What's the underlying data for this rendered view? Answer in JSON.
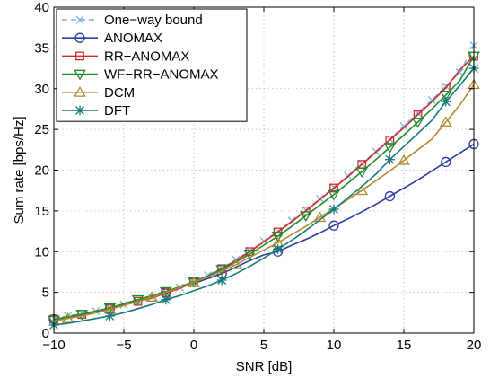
{
  "chart_data": {
    "type": "line",
    "title": "",
    "xlabel": "SNR [dB]",
    "ylabel": "Sum rate [bps/Hz]",
    "xlim": [
      -10,
      20
    ],
    "ylim": [
      0,
      40
    ],
    "xticks": [
      -10,
      -5,
      0,
      5,
      10,
      15,
      20
    ],
    "yticks": [
      0,
      5,
      10,
      15,
      20,
      25,
      30,
      35,
      40
    ],
    "xtick_labels": [
      "−10",
      "−5",
      "0",
      "5",
      "10",
      "15",
      "20"
    ],
    "ytick_labels": [
      "0",
      "5",
      "10",
      "15",
      "20",
      "25",
      "30",
      "35",
      "40"
    ],
    "grid": true,
    "legend": "top-left",
    "series": [
      {
        "name": "One−way bound",
        "color": "#7ab3dc",
        "line": "dashed",
        "marker": "x",
        "x": [
          -10,
          -9,
          -8,
          -7,
          -6,
          -5,
          -4,
          -3,
          -2,
          -1,
          0,
          1,
          2,
          3,
          4,
          5,
          6,
          7,
          8,
          9,
          10,
          11,
          12,
          13,
          14,
          15,
          16,
          17,
          18,
          19,
          20
        ],
        "y": [
          1.8,
          2.1,
          2.4,
          2.7,
          3.1,
          3.5,
          3.9,
          4.4,
          5.0,
          5.6,
          6.3,
          7.1,
          8.0,
          9.0,
          10.1,
          11.3,
          12.5,
          13.8,
          15.1,
          16.5,
          17.9,
          19.3,
          20.8,
          22.3,
          23.8,
          25.4,
          27.0,
          28.6,
          30.3,
          32.0,
          35.3
        ]
      },
      {
        "name": "ANOMAX",
        "color": "#2b3ea1",
        "line": "solid",
        "marker": "circle",
        "x": [
          -10,
          -9,
          -8,
          -7,
          -6,
          -5,
          -4,
          -3,
          -2,
          -1,
          0,
          1,
          2,
          3,
          4,
          5,
          6,
          7,
          8,
          9,
          10,
          11,
          12,
          13,
          14,
          15,
          16,
          17,
          18,
          19,
          20
        ],
        "y": [
          1.7,
          1.9,
          2.2,
          2.6,
          3.0,
          3.5,
          3.9,
          4.4,
          5.0,
          5.6,
          6.1,
          6.7,
          7.3,
          8.1,
          8.9,
          9.6,
          10.0,
          10.8,
          11.5,
          12.3,
          13.2,
          14.0,
          14.9,
          15.8,
          16.8,
          17.8,
          18.8,
          19.9,
          21.0,
          22.1,
          23.2
        ]
      },
      {
        "name": "RR−ANOMAX",
        "color": "#d6282a",
        "line": "solid",
        "marker": "square",
        "x": [
          -10,
          -9,
          -8,
          -7,
          -6,
          -5,
          -4,
          -3,
          -2,
          -1,
          0,
          1,
          2,
          3,
          4,
          5,
          6,
          7,
          8,
          9,
          10,
          11,
          12,
          13,
          14,
          15,
          16,
          17,
          18,
          19,
          20
        ],
        "y": [
          1.7,
          2.0,
          2.3,
          2.6,
          3.0,
          3.4,
          3.9,
          4.3,
          4.9,
          5.5,
          6.2,
          7.0,
          7.9,
          8.9,
          10.0,
          11.2,
          12.4,
          13.7,
          15.0,
          16.4,
          17.8,
          19.2,
          20.7,
          22.2,
          23.7,
          25.2,
          26.8,
          28.4,
          30.1,
          32.3,
          34.0
        ]
      },
      {
        "name": "WF−RR−ANOMAX",
        "color": "#1e8c2e",
        "line": "solid",
        "marker": "triangle-down",
        "x": [
          -10,
          -9,
          -8,
          -7,
          -6,
          -5,
          -4,
          -3,
          -2,
          -1,
          0,
          1,
          2,
          3,
          4,
          5,
          6,
          7,
          8,
          9,
          10,
          11,
          12,
          13,
          14,
          15,
          16,
          17,
          18,
          19,
          20
        ],
        "y": [
          1.6,
          2.0,
          2.3,
          2.7,
          3.1,
          3.6,
          4.1,
          4.6,
          5.1,
          5.7,
          6.3,
          7.0,
          7.8,
          8.7,
          9.7,
          10.8,
          11.9,
          13.1,
          14.4,
          15.7,
          17.0,
          18.4,
          19.8,
          21.3,
          22.8,
          24.3,
          25.9,
          27.5,
          29.2,
          31.0,
          34.0
        ]
      },
      {
        "name": "DCM",
        "color": "#b38a2e",
        "line": "solid",
        "marker": "triangle-up",
        "x": [
          -10,
          -9,
          -8,
          -7,
          -6,
          -5,
          -4,
          -3,
          -2,
          -1,
          0,
          1,
          2,
          3,
          4,
          5,
          6,
          7,
          8,
          9,
          10,
          11,
          12,
          13,
          14,
          15,
          16,
          17,
          18,
          19,
          20
        ],
        "y": [
          1.5,
          1.8,
          2.1,
          2.5,
          2.9,
          3.4,
          3.9,
          4.4,
          5.0,
          5.6,
          6.2,
          6.9,
          7.6,
          8.4,
          9.3,
          10.2,
          11.1,
          12.1,
          13.1,
          14.2,
          15.3,
          16.4,
          17.5,
          18.7,
          19.9,
          21.2,
          22.5,
          23.8,
          25.9,
          28.0,
          30.5
        ]
      },
      {
        "name": "DFT",
        "color": "#157a7a",
        "line": "solid",
        "marker": "star",
        "x": [
          -10,
          -9,
          -8,
          -7,
          -6,
          -5,
          -4,
          -3,
          -2,
          -1,
          0,
          1,
          2,
          3,
          4,
          5,
          6,
          7,
          8,
          9,
          10,
          11,
          12,
          13,
          14,
          15,
          16,
          17,
          18,
          19,
          20
        ],
        "y": [
          1.0,
          1.2,
          1.5,
          1.8,
          2.1,
          2.5,
          3.0,
          3.5,
          4.1,
          4.6,
          5.2,
          5.8,
          6.5,
          7.3,
          8.2,
          9.2,
          10.3,
          11.4,
          12.6,
          13.9,
          15.2,
          16.6,
          18.0,
          19.5,
          21.3,
          22.9,
          24.5,
          26.1,
          28.4,
          30.4,
          32.5
        ]
      }
    ]
  }
}
